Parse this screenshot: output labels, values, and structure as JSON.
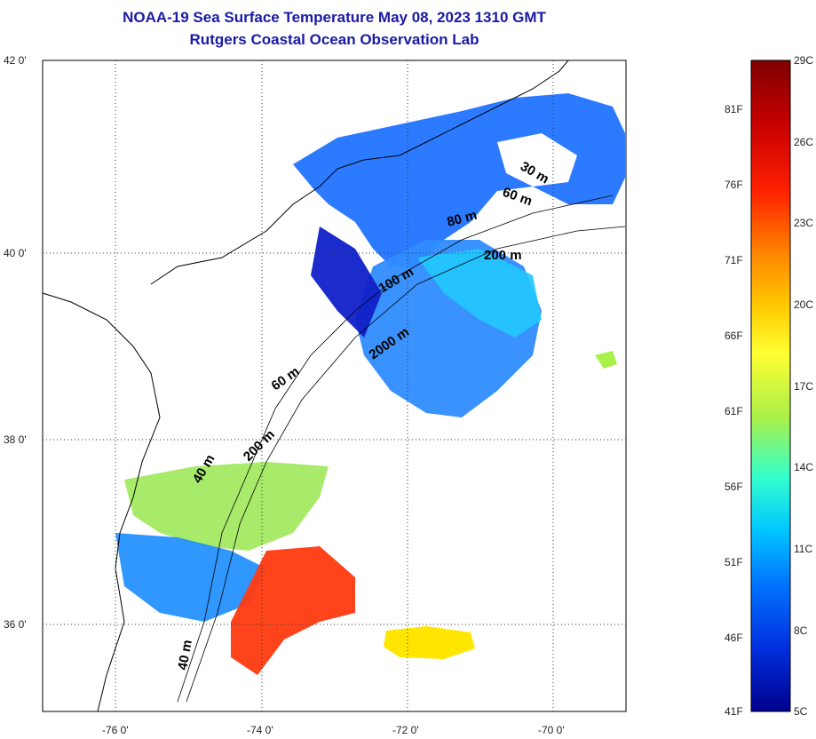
{
  "title": "NOAA-19 Sea Surface Temperature May 08, 2023 1310 GMT",
  "subtitle": "Rutgers Coastal Ocean Observation Lab",
  "map": {
    "lat_ticks": [
      "42 0'",
      "40 0'",
      "38 0'",
      "36 0'"
    ],
    "lon_ticks": [
      "-76 0'",
      "-74 0'",
      "-72 0'",
      "-70 0'"
    ],
    "lat_range": [
      35,
      42
    ],
    "lon_range": [
      -77,
      -69
    ],
    "grid": "dotted",
    "contour_labels": [
      "30 m",
      "60 m",
      "80 m",
      "200 m",
      "100 m",
      "2000 m",
      "60 m",
      "200 m",
      "40 m",
      "40 m"
    ]
  },
  "colorbar": {
    "celsius_labels": [
      "29C",
      "26C",
      "23C",
      "20C",
      "17C",
      "14C",
      "11C",
      "8C",
      "5C"
    ],
    "fahrenheit_labels": [
      "81F",
      "76F",
      "71F",
      "66F",
      "61F",
      "56F",
      "51F",
      "46F",
      "41F"
    ],
    "colors": [
      "#800000",
      "#c00000",
      "#ff0000",
      "#ff6a00",
      "#ffcc00",
      "#ffff33",
      "#a8f04a",
      "#33ffcc",
      "#00c8ff",
      "#0078ff",
      "#0030e0",
      "#00008c"
    ]
  }
}
